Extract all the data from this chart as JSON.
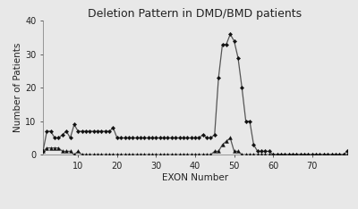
{
  "title": "Deletion Pattern in DMD/BMD patients",
  "xlabel": "EXON Number",
  "ylabel": "Number of Patients",
  "xlim": [
    1,
    79
  ],
  "ylim": [
    0,
    40
  ],
  "yticks": [
    0,
    10,
    20,
    30,
    40
  ],
  "xticks": [
    10,
    20,
    30,
    40,
    50,
    60,
    70
  ],
  "homozygous_x": [
    1,
    2,
    3,
    4,
    5,
    6,
    7,
    8,
    9,
    10,
    11,
    12,
    13,
    14,
    15,
    16,
    17,
    18,
    19,
    20,
    21,
    22,
    23,
    24,
    25,
    26,
    27,
    28,
    29,
    30,
    31,
    32,
    33,
    34,
    35,
    36,
    37,
    38,
    39,
    40,
    41,
    42,
    43,
    44,
    45,
    46,
    47,
    48,
    49,
    50,
    51,
    52,
    53,
    54,
    55,
    56,
    57,
    58,
    59,
    60,
    61,
    62,
    63,
    64,
    65,
    66,
    67,
    68,
    69,
    70,
    71,
    72,
    73,
    74,
    75,
    76,
    77,
    78,
    79
  ],
  "homozygous_y": [
    1,
    7,
    7,
    5,
    5,
    6,
    7,
    5,
    9,
    7,
    7,
    7,
    7,
    7,
    7,
    7,
    7,
    7,
    8,
    5,
    5,
    5,
    5,
    5,
    5,
    5,
    5,
    5,
    5,
    5,
    5,
    5,
    5,
    5,
    5,
    5,
    5,
    5,
    5,
    5,
    5,
    6,
    5,
    5,
    6,
    23,
    33,
    33,
    36,
    34,
    29,
    20,
    10,
    10,
    3,
    1,
    1,
    1,
    1,
    0,
    0,
    0,
    0,
    0,
    0,
    0,
    0,
    0,
    0,
    0,
    0,
    0,
    0,
    0,
    0,
    0,
    0,
    0,
    1
  ],
  "heterozygous_x": [
    1,
    2,
    3,
    4,
    5,
    6,
    7,
    8,
    9,
    10,
    11,
    12,
    13,
    14,
    15,
    16,
    17,
    18,
    19,
    20,
    21,
    22,
    23,
    24,
    25,
    26,
    27,
    28,
    29,
    30,
    31,
    32,
    33,
    34,
    35,
    36,
    37,
    38,
    39,
    40,
    41,
    42,
    43,
    44,
    45,
    46,
    47,
    48,
    49,
    50,
    51,
    52,
    53,
    54,
    55,
    56,
    57,
    58,
    59,
    60,
    61,
    62,
    63,
    64,
    65,
    66,
    67,
    68,
    69,
    70,
    71,
    72,
    73,
    74,
    75,
    76,
    77,
    78,
    79
  ],
  "heterozygous_y": [
    1,
    2,
    2,
    2,
    2,
    1,
    1,
    1,
    0,
    1,
    0,
    0,
    0,
    0,
    0,
    0,
    0,
    0,
    0,
    0,
    0,
    0,
    0,
    0,
    0,
    0,
    0,
    0,
    0,
    0,
    0,
    0,
    0,
    0,
    0,
    0,
    0,
    0,
    0,
    0,
    0,
    0,
    0,
    0,
    1,
    1,
    3,
    4,
    5,
    1,
    1,
    0,
    0,
    0,
    0,
    0,
    0,
    0,
    0,
    0,
    0,
    0,
    0,
    0,
    0,
    0,
    0,
    0,
    0,
    0,
    0,
    0,
    0,
    0,
    0,
    0,
    0,
    0,
    0
  ],
  "line_color": "#555555",
  "marker_color": "#111111",
  "bg_color": "#e8e8e8",
  "title_fontsize": 9,
  "label_fontsize": 7.5,
  "tick_fontsize": 7,
  "legend_fontsize": 7
}
